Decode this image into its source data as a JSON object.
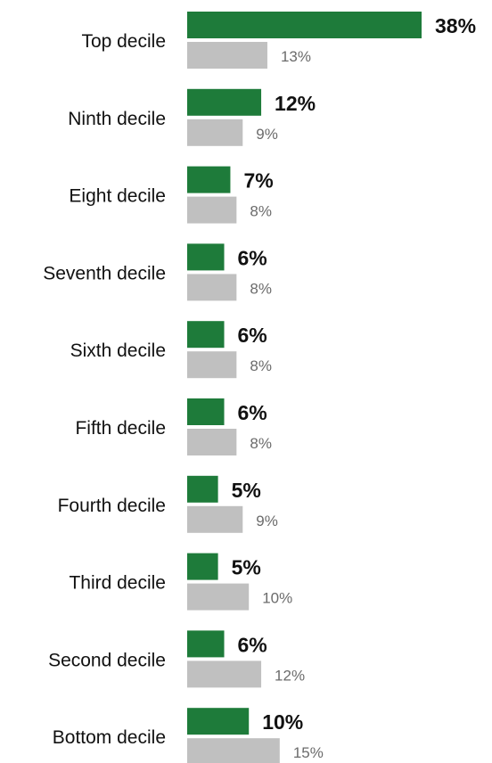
{
  "chart_data": {
    "type": "bar",
    "orientation": "horizontal",
    "categories": [
      "Top decile",
      "Ninth decile",
      "Eight decile",
      "Seventh decile",
      "Sixth decile",
      "Fifth decile",
      "Fourth decile",
      "Third decile",
      "Second decile",
      "Bottom decile"
    ],
    "series": [
      {
        "color": "#1e7b3a",
        "values": [
          38,
          12,
          7,
          6,
          6,
          6,
          5,
          5,
          6,
          10
        ],
        "labels": [
          "38%",
          "12%",
          "7%",
          "6%",
          "6%",
          "6%",
          "5%",
          "5%",
          "6%",
          "10%"
        ]
      },
      {
        "color": "#c0c0c0",
        "values": [
          13,
          9,
          8,
          8,
          8,
          8,
          9,
          10,
          12,
          15
        ],
        "labels": [
          "13%",
          "9%",
          "8%",
          "8%",
          "8%",
          "8%",
          "9%",
          "10%",
          "12%",
          "15%"
        ]
      }
    ],
    "title": "",
    "xlabel": "",
    "ylabel": "",
    "legend": "none",
    "grid": false
  }
}
